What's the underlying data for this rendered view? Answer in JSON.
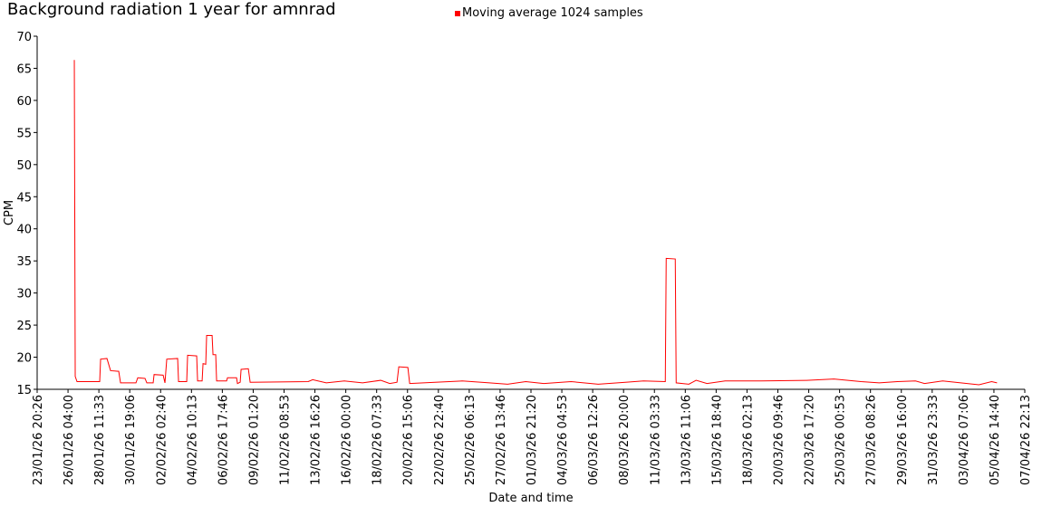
{
  "chart_data": {
    "type": "line",
    "title": "Background radiation 1 year for amnrad",
    "xlabel": "Date and time",
    "ylabel": "CPM",
    "legend_position": "top",
    "grid": false,
    "ylim": [
      15,
      70
    ],
    "yticks": [
      15,
      20,
      25,
      30,
      35,
      40,
      45,
      50,
      55,
      60,
      65,
      70
    ],
    "xlim": [
      "23/01/26 20:26",
      "07/04/26 22:13"
    ],
    "xticks": [
      "23/01/26 20:26",
      "26/01/26 04:00",
      "28/01/26 11:33",
      "30/01/26 19:06",
      "02/02/26 02:40",
      "04/02/26 10:13",
      "06/02/26 17:46",
      "09/02/26 01:20",
      "11/02/26 08:53",
      "13/02/26 16:26",
      "16/02/26 00:00",
      "18/02/26 07:33",
      "20/02/26 15:06",
      "22/02/26 22:40",
      "25/02/26 06:13",
      "27/02/26 13:46",
      "01/03/26 21:20",
      "04/03/26 04:53",
      "06/03/26 12:26",
      "08/03/26 20:00",
      "11/03/26 03:33",
      "13/03/26 11:06",
      "15/03/26 18:40",
      "18/03/26 02:13",
      "20/03/26 09:46",
      "22/03/26 17:20",
      "25/03/26 00:53",
      "27/03/26 08:26",
      "29/03/26 16:00",
      "31/03/26 23:33",
      "03/04/26 07:06",
      "05/04/26 14:40",
      "07/04/26 22:13"
    ],
    "x": [
      "26/01/26 15:20",
      "26/01/26 16:58",
      "26/01/26 20:13",
      "28/01/26 13:01",
      "28/01/26 14:39",
      "29/01/26 02:04",
      "29/01/26 08:36",
      "29/01/26 23:17",
      "30/01/26 02:32",
      "31/01/26 06:17",
      "31/01/26 09:32",
      "31/01/26 22:35",
      "01/02/26 01:52",
      "01/02/26 13:16",
      "01/02/26 14:55",
      "02/02/26 07:14",
      "02/02/26 10:29",
      "02/02/26 13:45",
      "03/02/26 09:20",
      "03/02/26 10:58",
      "04/02/26 01:39",
      "04/02/26 03:17",
      "04/02/26 19:36",
      "04/02/26 21:14",
      "05/02/26 05:23",
      "05/02/26 07:01",
      "05/02/26 11:55",
      "05/02/26 13:32",
      "05/02/26 23:20",
      "06/02/26 00:58",
      "06/02/26 05:52",
      "06/02/26 07:29",
      "07/02/26 01:26",
      "07/02/26 03:04",
      "07/02/26 19:23",
      "07/02/26 21:01",
      "08/02/26 01:55",
      "08/02/26 03:32",
      "08/02/26 16:35",
      "08/02/26 19:52",
      "13/02/26 04:17",
      "13/02/26 12:26",
      "14/02/26 12:55",
      "15/02/26 21:32",
      "17/02/26 06:10",
      "18/02/26 14:49",
      "19/02/26 07:07",
      "19/02/26 20:10",
      "19/02/26 23:26",
      "20/02/26 15:45",
      "20/02/26 19:01",
      "22/02/26 16:42",
      "24/02/26 17:39",
      "26/02/26 18:36",
      "28/02/26 03:14",
      "01/03/26 11:52",
      "02/03/26 20:29",
      "04/03/26 21:27",
      "06/03/26 22:23",
      "08/03/26 23:20",
      "10/03/26 07:58",
      "11/03/26 23:08",
      "12/03/26 00:46",
      "12/03/26 17:05",
      "12/03/26 18:43",
      "13/03/26 17:33",
      "14/03/26 06:36",
      "15/03/26 02:11",
      "16/03/26 10:49",
      "19/03/26 04:04",
      "22/03/26 13:40",
      "24/03/26 14:37",
      "26/03/26 15:33",
      "28/03/26 00:11",
      "29/03/26 08:49",
      "30/03/26 17:27",
      "31/03/26 09:46",
      "01/04/26 18:23",
      "03/04/26 03:02",
      "04/04/26 11:40",
      "05/04/26 10:30",
      "05/04/26 20:17"
    ],
    "series": [
      {
        "name": "Moving average 1024 samples",
        "color": "#ff0000",
        "values": [
          66.3,
          17.0,
          16.2,
          16.2,
          19.7,
          19.8,
          17.9,
          17.8,
          16.0,
          16.0,
          16.8,
          16.7,
          16.0,
          16.0,
          17.3,
          17.2,
          16.0,
          19.7,
          19.8,
          16.2,
          16.2,
          20.3,
          20.2,
          16.3,
          16.3,
          19.0,
          18.9,
          23.4,
          23.4,
          20.4,
          20.4,
          16.3,
          16.3,
          16.8,
          16.8,
          15.9,
          16.1,
          18.1,
          18.2,
          16.1,
          16.2,
          16.5,
          16.0,
          16.3,
          16.0,
          16.4,
          15.9,
          16.1,
          18.5,
          18.4,
          15.9,
          16.1,
          16.3,
          16.0,
          15.8,
          16.2,
          15.9,
          16.2,
          15.8,
          16.1,
          16.3,
          16.2,
          35.4,
          35.3,
          16.0,
          15.8,
          16.4,
          15.9,
          16.3,
          16.3,
          16.4,
          16.6,
          16.2,
          16.0,
          16.2,
          16.3,
          15.9,
          16.3,
          16.0,
          15.7,
          16.2,
          16.0
        ]
      }
    ]
  }
}
